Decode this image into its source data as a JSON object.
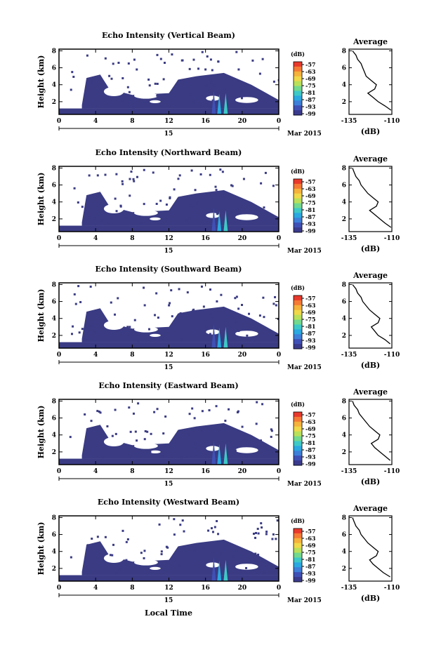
{
  "figure": {
    "xlabel": "Local Time",
    "date_label": "Mar 2015",
    "day_label": "15"
  },
  "colorbar": {
    "unit": "(dB)",
    "ticks": [
      "-57",
      "-63",
      "-69",
      "-75",
      "-81",
      "-87",
      "-93",
      "-99"
    ],
    "colors": [
      "#e83a2c",
      "#f47a35",
      "#f5b23c",
      "#f0d84a",
      "#b9e05a",
      "#72d98e",
      "#3ec9c7",
      "#2aa8e0",
      "#3d7fd9",
      "#3f50b5",
      "#3a3a8c"
    ]
  },
  "chart_data": [
    {
      "type": "heatmap",
      "title": "Echo Intensity (Vertical Beam)",
      "ylabel": "Height (km)",
      "x_ticks": [
        "0",
        "4",
        "8",
        "12",
        "16",
        "20",
        "0"
      ],
      "y_ticks": [
        "2",
        "4",
        "6",
        "8"
      ],
      "xlim": [
        0,
        24
      ],
      "ylim": [
        0.5,
        8.2
      ],
      "profile": {
        "title": "Average",
        "xlabel": "(dB)",
        "x_ticks": [
          "-135",
          "-110"
        ],
        "y_ticks": [
          "2",
          "4",
          "6",
          "8"
        ],
        "xlim": [
          -135,
          -110
        ],
        "ylim": [
          0.5,
          8.2
        ],
        "height_km": [
          1.0,
          1.5,
          2.0,
          2.5,
          3.0,
          3.5,
          4.0,
          4.5,
          5.0,
          5.5,
          6.0,
          6.5,
          7.0,
          7.5,
          8.0
        ],
        "values_db": [
          -110.5,
          -114,
          -118,
          -121,
          -124,
          -120,
          -119,
          -122,
          -125,
          -126,
          -127,
          -128,
          -130,
          -131,
          -133
        ]
      }
    },
    {
      "type": "heatmap",
      "title": "Echo Intensity (Northward Beam)",
      "ylabel": "Height (km)",
      "x_ticks": [
        "0",
        "4",
        "8",
        "12",
        "16",
        "20",
        "0"
      ],
      "y_ticks": [
        "2",
        "4",
        "6",
        "8"
      ],
      "xlim": [
        0,
        24
      ],
      "ylim": [
        0.5,
        8.2
      ],
      "profile": {
        "title": "Average",
        "xlabel": "(dB)",
        "x_ticks": [
          "-135",
          "-110"
        ],
        "y_ticks": [
          "2",
          "4",
          "6",
          "8"
        ],
        "xlim": [
          -135,
          -110
        ],
        "ylim": [
          0.5,
          8.2
        ],
        "height_km": [
          1.0,
          1.5,
          2.0,
          2.5,
          3.0,
          3.5,
          4.0,
          4.5,
          5.0,
          5.5,
          6.0,
          6.5,
          7.0,
          7.5,
          8.0
        ],
        "values_db": [
          -110.5,
          -114,
          -117,
          -120,
          -123,
          -119,
          -118,
          -121,
          -124,
          -126,
          -128,
          -129,
          -131,
          -132,
          -133
        ]
      }
    },
    {
      "type": "heatmap",
      "title": "Echo Intensity (Southward Beam)",
      "ylabel": "Height (km)",
      "x_ticks": [
        "0",
        "4",
        "8",
        "12",
        "16",
        "20",
        "0"
      ],
      "y_ticks": [
        "2",
        "4",
        "6",
        "8"
      ],
      "xlim": [
        0,
        24
      ],
      "ylim": [
        0.5,
        8.2
      ],
      "profile": {
        "title": "Average",
        "xlabel": "(dB)",
        "x_ticks": [
          "-135",
          "-110"
        ],
        "y_ticks": [
          "2",
          "4",
          "6",
          "8"
        ],
        "xlim": [
          -135,
          -110
        ],
        "ylim": [
          0.5,
          8.2
        ],
        "height_km": [
          1.0,
          1.5,
          2.0,
          2.5,
          3.0,
          3.5,
          4.0,
          4.5,
          5.0,
          5.5,
          6.0,
          6.5,
          7.0,
          7.5,
          8.0
        ],
        "values_db": [
          -111,
          -114,
          -118,
          -120,
          -122,
          -118,
          -117,
          -120,
          -123,
          -125,
          -127,
          -128,
          -130,
          -131,
          -133
        ]
      }
    },
    {
      "type": "heatmap",
      "title": "Echo Intensity (Eastward Beam)",
      "ylabel": "Height (km)",
      "x_ticks": [
        "0",
        "4",
        "8",
        "12",
        "16",
        "20",
        "0"
      ],
      "y_ticks": [
        "2",
        "4",
        "6",
        "8"
      ],
      "xlim": [
        0,
        24
      ],
      "ylim": [
        0.5,
        8.2
      ],
      "profile": {
        "title": "Average",
        "xlabel": "(dB)",
        "x_ticks": [
          "-135",
          "-110"
        ],
        "y_ticks": [
          "2",
          "4",
          "6",
          "8"
        ],
        "xlim": [
          -135,
          -110
        ],
        "ylim": [
          0.5,
          8.2
        ],
        "height_km": [
          1.0,
          1.5,
          2.0,
          2.5,
          3.0,
          3.5,
          4.0,
          4.5,
          5.0,
          5.5,
          6.0,
          6.5,
          7.0,
          7.5,
          8.0
        ],
        "values_db": [
          -111,
          -114,
          -117,
          -120,
          -122,
          -118,
          -117,
          -120,
          -123,
          -125,
          -127,
          -129,
          -130,
          -132,
          -133
        ]
      }
    },
    {
      "type": "heatmap",
      "title": "Echo Intensity (Westward Beam)",
      "ylabel": "Height (km)",
      "x_ticks": [
        "0",
        "4",
        "8",
        "12",
        "16",
        "20",
        "0"
      ],
      "y_ticks": [
        "2",
        "4",
        "6",
        "8"
      ],
      "xlim": [
        0,
        24
      ],
      "ylim": [
        0.5,
        8.2
      ],
      "profile": {
        "title": "Average",
        "xlabel": "(dB)",
        "x_ticks": [
          "-135",
          "-110"
        ],
        "y_ticks": [
          "2",
          "4",
          "6",
          "8"
        ],
        "xlim": [
          -135,
          -110
        ],
        "ylim": [
          0.5,
          8.2
        ],
        "height_km": [
          1.0,
          1.5,
          2.0,
          2.5,
          3.0,
          3.5,
          4.0,
          4.5,
          5.0,
          5.5,
          6.0,
          6.5,
          7.0,
          7.5,
          8.0
        ],
        "values_db": [
          -111,
          -115,
          -118,
          -121,
          -123,
          -119,
          -118,
          -121,
          -124,
          -126,
          -128,
          -129,
          -131,
          -132,
          -133
        ]
      }
    }
  ]
}
